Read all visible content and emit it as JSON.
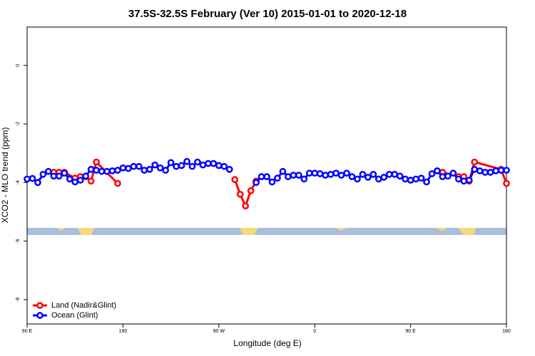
{
  "chart_data": {
    "type": "line",
    "title": "37.5S-32.5S February (Ver 10)   2015-01-01 to 2020-12-18",
    "x_label": "Longitude (deg E)",
    "y_label": "XCO2 - MLO trend (ppm)",
    "xlim": [
      90,
      540
    ],
    "xticks": [
      {
        "value": 90,
        "label": "90 E"
      },
      {
        "value": 180,
        "label": "180"
      },
      {
        "value": 270,
        "label": "90 W"
      },
      {
        "value": 360,
        "label": "0"
      },
      {
        "value": 450,
        "label": "90 E"
      },
      {
        "value": 540,
        "label": "180"
      }
    ],
    "ylim": [
      -8.83,
      1.31
    ],
    "yticks": [
      0,
      -2,
      -4,
      -6,
      -8
    ],
    "legend": "bottom-left",
    "series": [
      {
        "name": "Land (Nadir&Glint)",
        "color": "#ff0000",
        "x": [
          115,
          120,
          125,
          135,
          140,
          145,
          150,
          155,
          175,
          200,
          285,
          290,
          295,
          300,
          305,
          400,
          475,
          480,
          495,
          500,
          505,
          510,
          535,
          540
        ],
        "values": [
          -3.65,
          -3.65,
          -3.65,
          -3.85,
          -3.8,
          -3.8,
          -3.95,
          -3.3,
          -4.03,
          null,
          -3.9,
          -4.4,
          -4.8,
          -4.28,
          -3.95,
          null,
          -3.6,
          -3.65,
          -3.8,
          -3.8,
          -3.95,
          -3.3,
          -3.55,
          -4.03
        ]
      },
      {
        "name": "Ocean (Glint)",
        "color": "#0000ff",
        "x": [
          90,
          95,
          100,
          105,
          110,
          115,
          120,
          125,
          130,
          135,
          140,
          145,
          150,
          155,
          160,
          165,
          170,
          175,
          180,
          185,
          190,
          195,
          200,
          205,
          210,
          215,
          220,
          225,
          230,
          235,
          240,
          245,
          250,
          255,
          260,
          265,
          270,
          275,
          280,
          285,
          290,
          295,
          300,
          305,
          310,
          315,
          320,
          325,
          330,
          335,
          340,
          345,
          350,
          355,
          360,
          365,
          370,
          375,
          380,
          385,
          390,
          395,
          400,
          405,
          410,
          415,
          420,
          425,
          430,
          435,
          440,
          445,
          450,
          455,
          460,
          465,
          470,
          475,
          480,
          485,
          490,
          495,
          500,
          505,
          510,
          515,
          520,
          525,
          530,
          535,
          540
        ],
        "values": [
          -3.88,
          -3.86,
          -4.0,
          -3.72,
          -3.62,
          -3.78,
          -3.78,
          -3.68,
          -3.88,
          -3.98,
          -3.92,
          -3.78,
          -3.55,
          -3.58,
          -3.62,
          -3.62,
          -3.6,
          -3.58,
          -3.5,
          -3.52,
          -3.45,
          -3.45,
          -3.58,
          -3.55,
          -3.4,
          -3.5,
          -3.58,
          -3.32,
          -3.45,
          -3.42,
          -3.28,
          -3.45,
          -3.3,
          -3.4,
          -3.35,
          -3.35,
          -3.42,
          -3.45,
          -3.55,
          null,
          null,
          null,
          null,
          -4.0,
          -3.8,
          -3.8,
          -3.98,
          -3.85,
          -3.62,
          -3.8,
          -3.75,
          -3.75,
          -3.88,
          -3.68,
          -3.68,
          -3.7,
          -3.75,
          -3.72,
          -3.68,
          -3.75,
          -3.68,
          -3.8,
          -3.88,
          -3.72,
          -3.82,
          -3.72,
          -3.88,
          -3.82,
          -3.72,
          -3.72,
          -3.78,
          -3.88,
          -3.92,
          -3.88,
          -3.85,
          -3.98,
          -3.7,
          -3.6,
          -3.8,
          -3.78,
          -3.68,
          -3.88,
          -3.95,
          -3.92,
          -3.55,
          -3.6,
          -3.65,
          -3.65,
          -3.6,
          -3.58,
          -3.58
        ]
      }
    ]
  }
}
